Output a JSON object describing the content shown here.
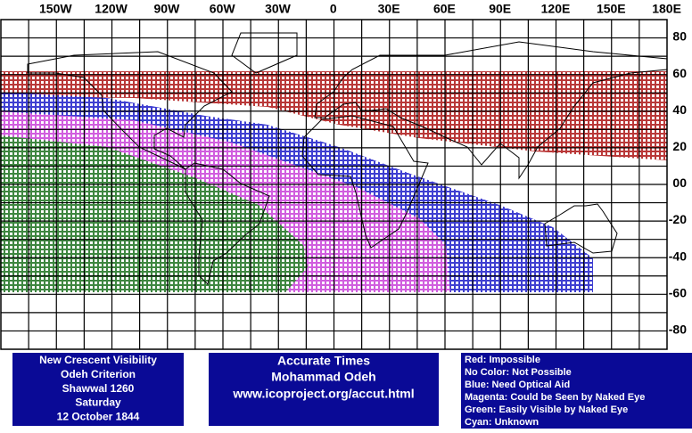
{
  "map": {
    "lon_labels": [
      "150W",
      "120W",
      "90W",
      "60W",
      "30W",
      "0",
      "30E",
      "60E",
      "90E",
      "120E",
      "150E",
      "180E"
    ],
    "lat_labels": [
      "80",
      "60",
      "40",
      "20",
      "00",
      "-20",
      "-40",
      "-60",
      "-80"
    ]
  },
  "info": {
    "lines": [
      "New Crescent Visibility",
      "Odeh Criterion",
      "Shawwal 1260",
      "Saturday",
      "12 October 1844"
    ]
  },
  "credits": {
    "title": "Accurate Times",
    "author": "Mohammad Odeh",
    "url": "www.icoproject.org/accut.html"
  },
  "legend": {
    "lines": [
      "Red: Impossible",
      "No Color: Not Possible",
      "Blue: Need Optical Aid",
      "Magenta: Could be Seen by Naked Eye",
      "Green: Easily Visible by Naked Eye",
      "Cyan: Unknown"
    ]
  }
}
